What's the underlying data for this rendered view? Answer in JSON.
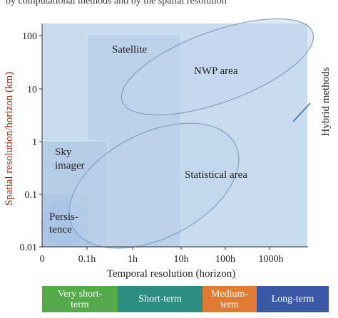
{
  "header_fragment": "by computational methods and by the spatial resolution",
  "axes": {
    "ylabel": "Spatial resolution/horizon (km)",
    "xlabel": "Temporal resolution (horizon)",
    "y_ticks": [
      "100",
      "10",
      "1",
      "0.1",
      "0.01"
    ],
    "x_ticks": [
      "0",
      "0.1h",
      "1h",
      "10h",
      "100h",
      "1000h"
    ]
  },
  "regions": {
    "satellite": "Satellite",
    "nwp": "NWP area",
    "statistical": "Statistical area",
    "sky_imager_line1": "Sky",
    "sky_imager_line2": "imager",
    "persistence_line1": "Persis-",
    "persistence_line2": "tence"
  },
  "side_label": "Hybrid methods",
  "bands": {
    "very_short_line1": "Very short-",
    "very_short_line2": "term",
    "short": "Short-term",
    "medium_line1": "Medium-",
    "medium_line2": "term",
    "long": "Long-term"
  },
  "colors": {
    "plot_bg": "#c9dcef",
    "box": "#b9cfe9",
    "axis_text": "#1f1f1f",
    "ylabel": "#8b2d17",
    "very_short": "#54a94a",
    "short": "#2c8e83",
    "medium": "#e17a32",
    "long": "#3a58a6",
    "hybrid_arrow": "#2d6db5"
  }
}
